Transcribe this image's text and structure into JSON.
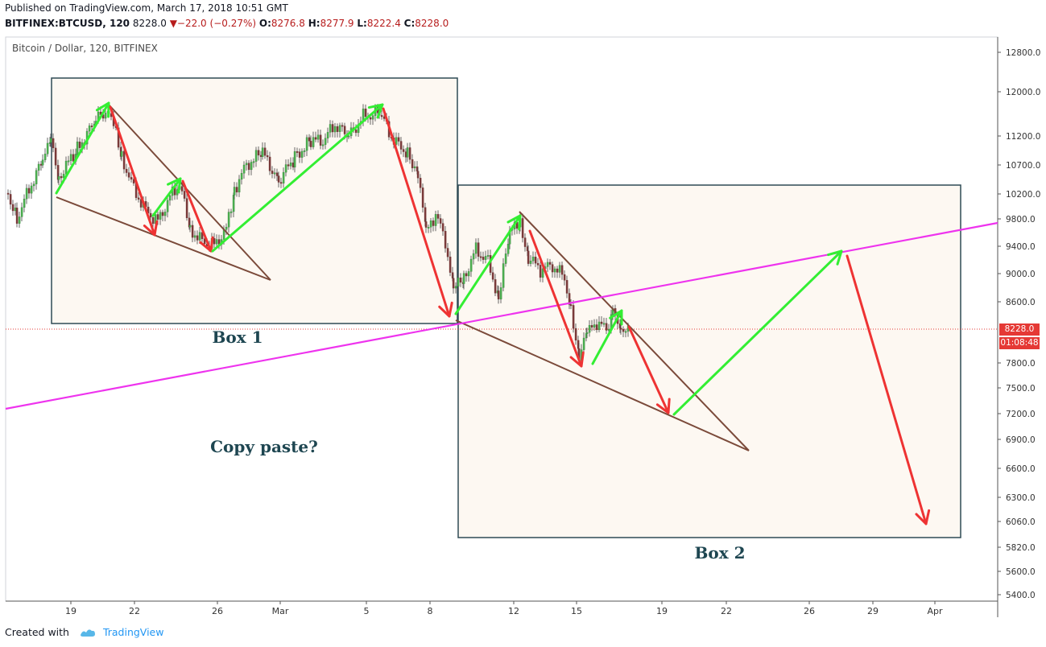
{
  "header": {
    "published": "Published on TradingView.com, March 17, 2018 10:51 GMT",
    "symbol": "BITFINEX:BTCUSD, 120",
    "last": "8228.0",
    "change_arrow": "▼",
    "change": "−22.0 (−0.27%)",
    "o_key": "O:",
    "o_val": "8276.8",
    "h_key": "H:",
    "h_val": "8277.9",
    "l_key": "L:",
    "l_val": "8222.4",
    "c_key": "C:",
    "c_val": "8228.0"
  },
  "colors": {
    "up_arrow": "#33ee33",
    "down_arrow": "#ee3333",
    "trendline": "#7b4a3a",
    "magenta_line": "#ee33ee",
    "box_fill": "#fdf8f2",
    "box_stroke": "#2e4a55",
    "text_teal": "#1e4651",
    "price_tag": "#e53935"
  },
  "chart_data": {
    "type": "candlestick",
    "title": "Bitcoin / Dollar, 120, BITFINEX",
    "y_scale": "log",
    "y_ticks": [
      "12800.0",
      "12000.0",
      "11200.0",
      "10700.0",
      "10200.0",
      "9800.0",
      "9400.0",
      "9000.0",
      "8600.0",
      "7800.0",
      "7500.0",
      "7200.0",
      "6900.0",
      "6600.0",
      "6300.0",
      "6060.0",
      "5820.0",
      "5600.0",
      "5400.0"
    ],
    "x_ticks": [
      "19",
      "22",
      "26",
      "Mar",
      "5",
      "8",
      "12",
      "15",
      "19",
      "22",
      "26",
      "29",
      "Apr"
    ],
    "last_price": "8228.0",
    "countdown": "01:08:48",
    "annotations": {
      "box1": "Box 1",
      "box2": "Box 2",
      "question": "Copy paste?"
    }
  },
  "footer": {
    "created_with": "Created with",
    "brand": "TradingView"
  }
}
